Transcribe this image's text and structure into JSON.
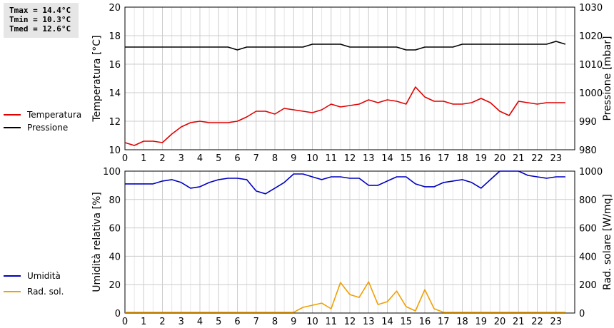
{
  "stats": {
    "tmax": "Tmax = 14.4°C",
    "tmin": "Tmin = 10.3°C",
    "tmed": "Tmed = 12.6°C"
  },
  "chart_data": [
    {
      "type": "line",
      "grid": true,
      "x": [
        0,
        0.5,
        1,
        1.5,
        2,
        2.5,
        3,
        3.5,
        4,
        4.5,
        5,
        5.5,
        6,
        6.5,
        7,
        7.5,
        8,
        8.5,
        9,
        9.5,
        10,
        10.5,
        11,
        11.5,
        12,
        12.5,
        13,
        13.5,
        14,
        14.5,
        15,
        15.5,
        16,
        16.5,
        17,
        17.5,
        18,
        18.5,
        19,
        19.5,
        20,
        20.5,
        21,
        21.5,
        22,
        22.5,
        23,
        23.5
      ],
      "xlim": [
        0,
        24
      ],
      "x_ticks": [
        "0",
        "1",
        "2",
        "3",
        "4",
        "5",
        "6",
        "7",
        "8",
        "9",
        "10",
        "11",
        "12",
        "13",
        "14",
        "15",
        "16",
        "17",
        "18",
        "19",
        "20",
        "21",
        "22",
        "23"
      ],
      "ylabel": "Temperatura [°C]",
      "ylim": [
        10,
        20
      ],
      "y_ticks": [
        "10",
        "12",
        "14",
        "16",
        "18",
        "20"
      ],
      "y2label": "Pressione [mbar]",
      "y2lim": [
        980,
        1030
      ],
      "y2_ticks": [
        "980",
        "990",
        "1000",
        "1010",
        "1020",
        "1030"
      ],
      "legend_position": "left",
      "series": [
        {
          "name": "Temperatura",
          "axis": "left",
          "color": "#e00000",
          "values": [
            10.5,
            10.3,
            10.6,
            10.6,
            10.5,
            11.1,
            11.6,
            11.9,
            12.0,
            11.9,
            11.9,
            11.9,
            12.0,
            12.3,
            12.7,
            12.7,
            12.5,
            12.9,
            12.8,
            12.7,
            12.6,
            12.8,
            13.2,
            13.0,
            13.1,
            13.2,
            13.5,
            13.3,
            13.5,
            13.4,
            13.2,
            14.4,
            13.7,
            13.4,
            13.4,
            13.2,
            13.2,
            13.3,
            13.6,
            13.3,
            12.7,
            12.4,
            13.4,
            13.3,
            13.2,
            13.3,
            13.3,
            13.3
          ]
        },
        {
          "name": "Pressione",
          "axis": "right",
          "color": "#000000",
          "values": [
            1016,
            1016,
            1016,
            1016,
            1016,
            1016,
            1016,
            1016,
            1016,
            1016,
            1016,
            1016,
            1015,
            1016,
            1016,
            1016,
            1016,
            1016,
            1016,
            1016,
            1017,
            1017,
            1017,
            1017,
            1016,
            1016,
            1016,
            1016,
            1016,
            1016,
            1015,
            1015,
            1016,
            1016,
            1016,
            1016,
            1017,
            1017,
            1017,
            1017,
            1017,
            1017,
            1017,
            1017,
            1017,
            1017,
            1018,
            1017
          ]
        }
      ]
    },
    {
      "type": "line",
      "grid": true,
      "x": [
        0,
        0.5,
        1,
        1.5,
        2,
        2.5,
        3,
        3.5,
        4,
        4.5,
        5,
        5.5,
        6,
        6.5,
        7,
        7.5,
        8,
        8.5,
        9,
        9.5,
        10,
        10.5,
        11,
        11.5,
        12,
        12.5,
        13,
        13.5,
        14,
        14.5,
        15,
        15.5,
        16,
        16.5,
        17,
        17.5,
        18,
        18.5,
        19,
        19.5,
        20,
        20.5,
        21,
        21.5,
        22,
        22.5,
        23,
        23.5
      ],
      "xlim": [
        0,
        24
      ],
      "x_ticks": [
        "0",
        "1",
        "2",
        "3",
        "4",
        "5",
        "6",
        "7",
        "8",
        "9",
        "10",
        "11",
        "12",
        "13",
        "14",
        "15",
        "16",
        "17",
        "18",
        "19",
        "20",
        "21",
        "22",
        "23"
      ],
      "ylabel": "Umidità relativa [%]",
      "ylim": [
        0,
        100
      ],
      "y_ticks": [
        "0",
        "20",
        "40",
        "60",
        "80",
        "100"
      ],
      "y2label": "Rad. solare [W/mq]",
      "y2lim": [
        0,
        1000
      ],
      "y2_ticks": [
        "0",
        "200",
        "400",
        "600",
        "800",
        "1000"
      ],
      "legend_position": "left",
      "series": [
        {
          "name": "Umidità",
          "axis": "left",
          "color": "#0000c0",
          "values": [
            91,
            91,
            91,
            91,
            93,
            94,
            92,
            88,
            89,
            92,
            94,
            95,
            95,
            94,
            86,
            84,
            88,
            92,
            98,
            98,
            96,
            94,
            96,
            96,
            95,
            95,
            90,
            90,
            93,
            96,
            96,
            91,
            89,
            89,
            92,
            93,
            94,
            92,
            88,
            94,
            100,
            100,
            100,
            97,
            96,
            95,
            96,
            96
          ]
        },
        {
          "name": "Rad. sol.",
          "axis": "right",
          "color": "#f0a000",
          "values": [
            5,
            5,
            5,
            5,
            5,
            5,
            5,
            5,
            5,
            5,
            5,
            5,
            5,
            5,
            5,
            5,
            5,
            5,
            5,
            40,
            55,
            70,
            30,
            215,
            130,
            110,
            220,
            60,
            80,
            155,
            45,
            15,
            165,
            30,
            5,
            5,
            5,
            5,
            5,
            5,
            5,
            5,
            5,
            5,
            5,
            5,
            5,
            5
          ]
        }
      ]
    }
  ]
}
